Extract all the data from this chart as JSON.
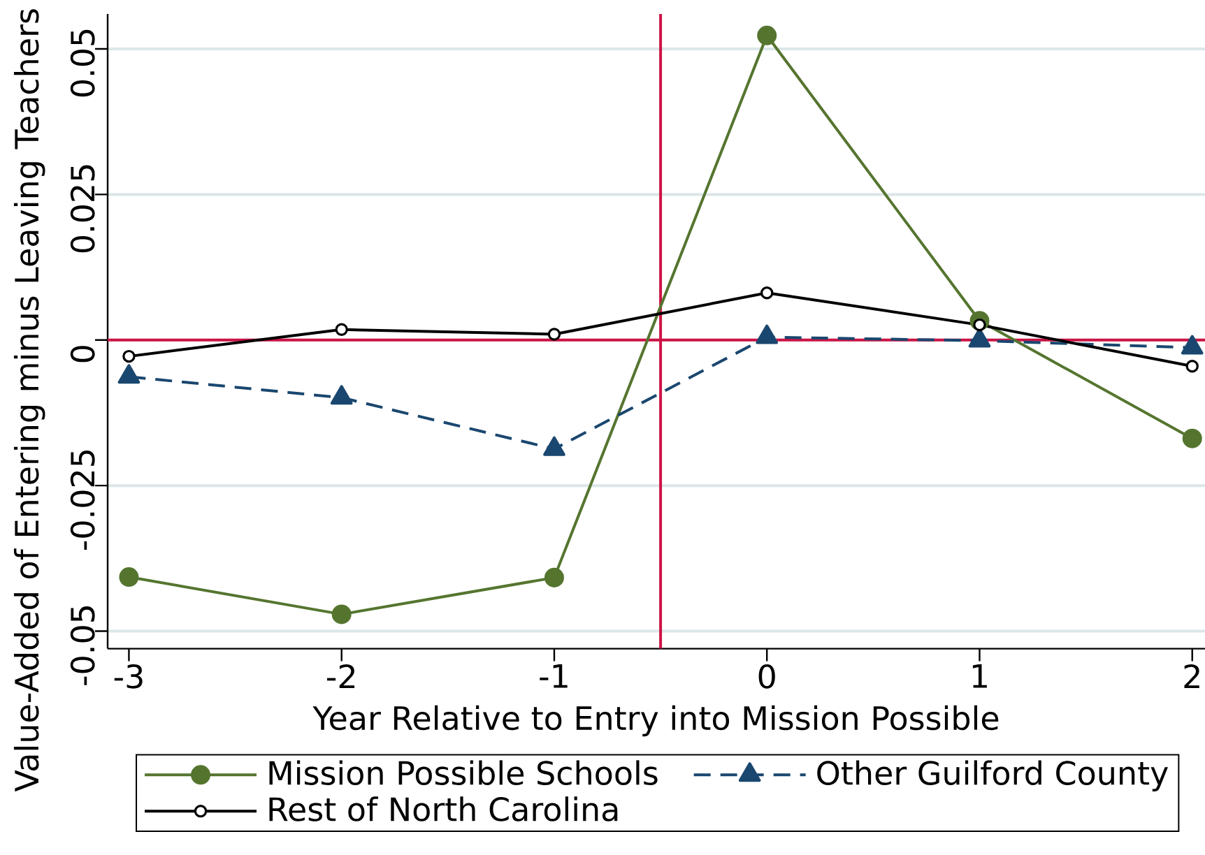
{
  "chart_data": {
    "type": "line",
    "xlabel": "Year Relative to Entry into Mission Possible",
    "ylabel": "Value-Added of Entering minus Leaving Teachers",
    "x": [
      -3,
      -2,
      -1,
      0,
      1,
      2
    ],
    "series": [
      {
        "name": "Mission Possible Schools",
        "color": "#55752f",
        "marker": "circle",
        "line_style": "solid",
        "values": [
          -0.0407,
          -0.0471,
          -0.0408,
          0.0523,
          0.0033,
          -0.0169
        ]
      },
      {
        "name": "Other Guilford County",
        "color": "#1a476f",
        "marker": "triangle",
        "line_style": "dashed",
        "values": [
          -0.0063,
          -0.0099,
          -0.0187,
          0.0005,
          -0.0001,
          -0.0013
        ]
      },
      {
        "name": "Rest of North Carolina",
        "color": "#000000",
        "marker": "circle",
        "line_style": "solid",
        "values": [
          -0.0028,
          0.0018,
          0.001,
          0.0081,
          0.0026,
          -0.0045
        ]
      }
    ],
    "xlim": [
      -3.1,
      2.06
    ],
    "ylim": [
      -0.053,
      0.056
    ],
    "xticks": [
      -3,
      -2,
      -1,
      0,
      1,
      2
    ],
    "yticks": [
      -0.05,
      -0.025,
      0,
      0.025,
      0.05
    ],
    "grid": "y",
    "legend": "bottom",
    "ref_lines": [
      {
        "axis": "x",
        "value": -0.5,
        "color": "#cc1446"
      },
      {
        "axis": "y",
        "value": 0,
        "color": "#cc1446"
      }
    ]
  }
}
